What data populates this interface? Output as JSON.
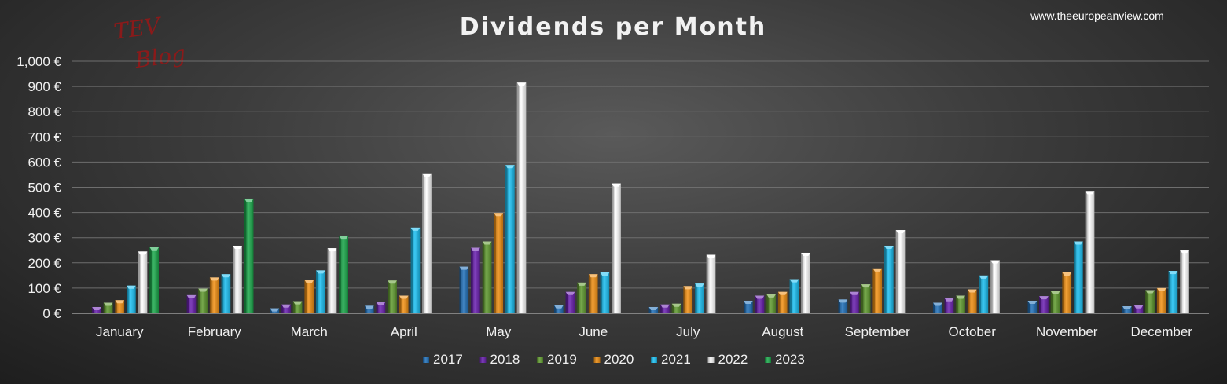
{
  "site_url": "www.theeuropeanview.com",
  "logo": {
    "line1": "TEV",
    "line2": "Blog"
  },
  "colors": {
    "2017": "#1f6fb8",
    "2018": "#6a1fb0",
    "2019": "#5f9a2e",
    "2020": "#f29012",
    "2021": "#1bc0f2",
    "2022": "#ffffff",
    "2023": "#1aa84a"
  },
  "chart_data": {
    "type": "bar",
    "title": "Dividends per Month",
    "xlabel": "",
    "ylabel": "",
    "ylim": [
      0,
      1000
    ],
    "yticks": [
      0,
      100,
      200,
      300,
      400,
      500,
      600,
      700,
      800,
      900,
      1000
    ],
    "ytick_labels": [
      "0 €",
      "100 €",
      "200 €",
      "300 €",
      "400 €",
      "500 €",
      "600 €",
      "700 €",
      "800 €",
      "900 €",
      "1,000 €"
    ],
    "grid": true,
    "legend_position": "bottom",
    "categories": [
      "January",
      "February",
      "March",
      "April",
      "May",
      "June",
      "July",
      "August",
      "September",
      "October",
      "November",
      "December"
    ],
    "series": [
      {
        "name": "2017",
        "values": [
          0,
          0,
          20,
          30,
          185,
          32,
          25,
          50,
          55,
          42,
          50,
          28
        ]
      },
      {
        "name": "2018",
        "values": [
          25,
          72,
          35,
          45,
          260,
          85,
          35,
          70,
          85,
          60,
          68,
          32
        ]
      },
      {
        "name": "2019",
        "values": [
          42,
          98,
          48,
          130,
          285,
          122,
          38,
          75,
          115,
          70,
          88,
          92
        ]
      },
      {
        "name": "2020",
        "values": [
          52,
          142,
          132,
          70,
          398,
          155,
          108,
          85,
          178,
          95,
          162,
          100
        ]
      },
      {
        "name": "2021",
        "values": [
          110,
          155,
          170,
          340,
          588,
          162,
          118,
          135,
          268,
          150,
          285,
          168
        ]
      },
      {
        "name": "2022",
        "values": [
          245,
          268,
          258,
          555,
          915,
          515,
          232,
          240,
          330,
          210,
          485,
          252
        ]
      },
      {
        "name": "2023",
        "values": [
          262,
          455,
          308,
          null,
          null,
          null,
          null,
          null,
          null,
          null,
          null,
          null
        ]
      }
    ]
  }
}
